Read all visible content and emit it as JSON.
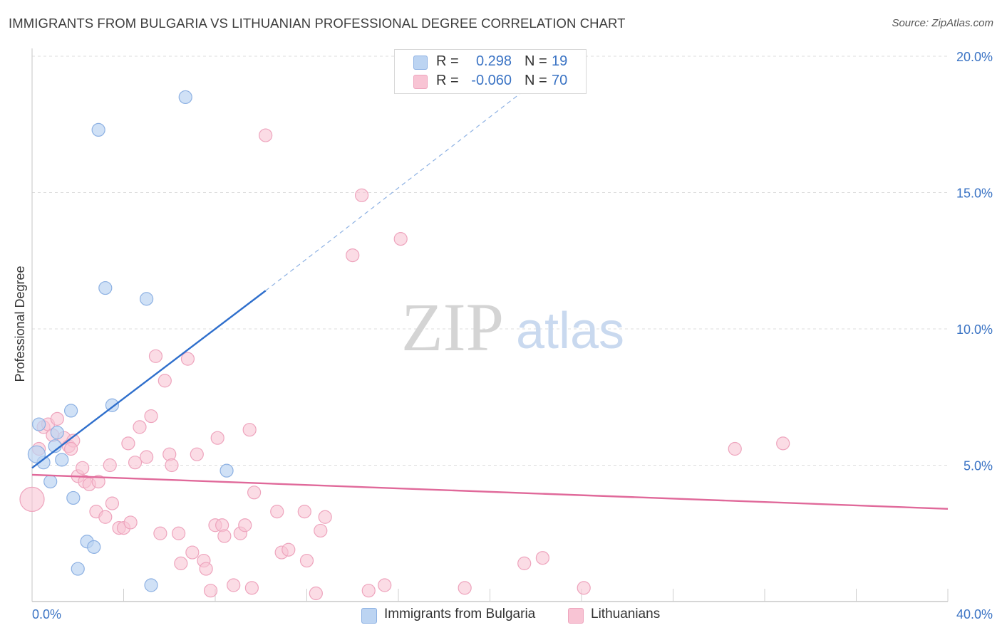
{
  "title": "IMMIGRANTS FROM BULGARIA VS LITHUANIAN PROFESSIONAL DEGREE CORRELATION CHART",
  "source": "Source: ZipAtlas.com",
  "watermark": {
    "zip": "ZIP",
    "atlas": "atlas"
  },
  "legend": {
    "rows": [
      {
        "r_label": "R =",
        "r_value": "0.298",
        "n_label": "N =",
        "n_value": "19"
      },
      {
        "r_label": "R =",
        "r_value": "-0.060",
        "n_label": "N =",
        "n_value": "70"
      }
    ]
  },
  "bottom_legend": {
    "bulgaria": "Immigrants from Bulgaria",
    "lithuanians": "Lithuanians"
  },
  "colors": {
    "bulgaria_fill": "#bcd4f2",
    "bulgaria_stroke": "#8db1e3",
    "bulgaria_line": "#2f6fcc",
    "lithuanians_fill": "#f8c4d4",
    "lithuanians_stroke": "#eea4bd",
    "lithuanians_line": "#e0699a",
    "axis_text": "#3a73c4",
    "grid": "#dcdcdc"
  },
  "chart_data": {
    "type": "scatter",
    "title": "IMMIGRANTS FROM BULGARIA VS LITHUANIAN PROFESSIONAL DEGREE CORRELATION CHART",
    "xlabel": "",
    "ylabel": "Professional Degree",
    "xlim": [
      0,
      40
    ],
    "ylim": [
      0,
      20
    ],
    "x_tick_labels": [
      "0.0%",
      "40.0%"
    ],
    "y_ticks": [
      5,
      10,
      15,
      20
    ],
    "y_tick_labels": [
      "5.0%",
      "10.0%",
      "15.0%",
      "20.0%"
    ],
    "grid": true,
    "series": [
      {
        "name": "Immigrants from Bulgaria",
        "r": 0.298,
        "n": 19,
        "trend": {
          "x0": 0,
          "y0": 4.9,
          "x1": 10.2,
          "y1": 11.4,
          "dashed_to_x": 22.5,
          "dashed_to_y": 19.4
        },
        "points": [
          [
            0.3,
            6.5
          ],
          [
            0.5,
            5.1
          ],
          [
            0.8,
            4.4
          ],
          [
            1.1,
            6.2
          ],
          [
            1.3,
            5.2
          ],
          [
            1.0,
            5.7
          ],
          [
            1.7,
            7.0
          ],
          [
            0.2,
            5.4
          ],
          [
            1.8,
            3.8
          ],
          [
            2.4,
            2.2
          ],
          [
            2.7,
            2.0
          ],
          [
            2.0,
            1.2
          ],
          [
            2.9,
            17.3
          ],
          [
            3.2,
            11.5
          ],
          [
            3.5,
            7.2
          ],
          [
            5.0,
            11.1
          ],
          [
            6.7,
            18.5
          ],
          [
            8.5,
            4.8
          ],
          [
            5.2,
            0.6
          ]
        ]
      },
      {
        "name": "Lithuanians",
        "r": -0.06,
        "n": 70,
        "trend": {
          "x0": 0,
          "y0": 4.65,
          "x1": 40,
          "y1": 3.4
        },
        "points": [
          [
            0.0,
            3.75
          ],
          [
            0.3,
            5.6
          ],
          [
            0.5,
            6.4
          ],
          [
            0.7,
            6.5
          ],
          [
            0.9,
            6.1
          ],
          [
            1.1,
            6.7
          ],
          [
            1.4,
            6.0
          ],
          [
            1.6,
            5.7
          ],
          [
            1.8,
            5.9
          ],
          [
            1.7,
            5.6
          ],
          [
            2.0,
            4.6
          ],
          [
            2.2,
            4.9
          ],
          [
            2.3,
            4.4
          ],
          [
            2.5,
            4.3
          ],
          [
            2.9,
            4.4
          ],
          [
            2.8,
            3.3
          ],
          [
            3.2,
            3.1
          ],
          [
            3.4,
            5.0
          ],
          [
            3.5,
            3.6
          ],
          [
            3.8,
            2.7
          ],
          [
            4.0,
            2.7
          ],
          [
            4.2,
            5.8
          ],
          [
            4.3,
            2.9
          ],
          [
            4.5,
            5.1
          ],
          [
            4.7,
            6.4
          ],
          [
            5.0,
            5.3
          ],
          [
            5.2,
            6.8
          ],
          [
            5.4,
            9.0
          ],
          [
            5.6,
            2.5
          ],
          [
            5.8,
            8.1
          ],
          [
            6.0,
            5.4
          ],
          [
            6.1,
            5.0
          ],
          [
            6.4,
            2.5
          ],
          [
            6.5,
            1.4
          ],
          [
            6.8,
            8.9
          ],
          [
            7.0,
            1.8
          ],
          [
            7.2,
            5.4
          ],
          [
            7.5,
            1.5
          ],
          [
            7.6,
            1.2
          ],
          [
            7.8,
            0.4
          ],
          [
            8.0,
            2.8
          ],
          [
            8.1,
            6.0
          ],
          [
            8.3,
            2.8
          ],
          [
            8.4,
            2.4
          ],
          [
            8.8,
            0.6
          ],
          [
            9.1,
            2.5
          ],
          [
            9.3,
            2.8
          ],
          [
            9.5,
            6.3
          ],
          [
            9.6,
            0.5
          ],
          [
            9.7,
            4.0
          ],
          [
            10.2,
            17.1
          ],
          [
            10.7,
            3.3
          ],
          [
            10.9,
            1.8
          ],
          [
            11.2,
            1.9
          ],
          [
            11.9,
            3.3
          ],
          [
            12.0,
            1.5
          ],
          [
            12.4,
            0.3
          ],
          [
            12.6,
            2.6
          ],
          [
            12.8,
            3.1
          ],
          [
            14.0,
            12.7
          ],
          [
            14.4,
            14.9
          ],
          [
            14.7,
            0.4
          ],
          [
            15.4,
            0.6
          ],
          [
            16.1,
            13.3
          ],
          [
            18.9,
            0.5
          ],
          [
            21.5,
            1.4
          ],
          [
            22.3,
            1.6
          ],
          [
            24.1,
            0.5
          ],
          [
            30.7,
            5.6
          ],
          [
            32.8,
            5.8
          ]
        ]
      }
    ]
  }
}
